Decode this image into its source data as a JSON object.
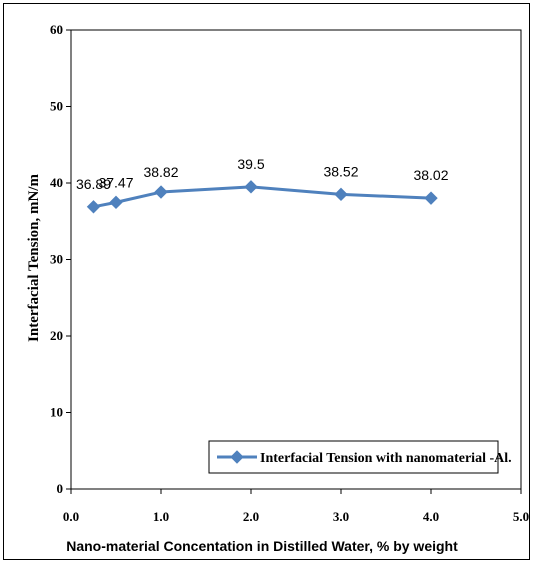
{
  "chart_data": {
    "type": "line",
    "title": "",
    "xlabel": "Nano-material Concentation in Distilled Water, % by weight",
    "ylabel": "Interfacial Tension, mN/m",
    "xlim": [
      0,
      5
    ],
    "ylim": [
      0,
      60
    ],
    "x_ticks": [
      "0.0",
      "1.0",
      "2.0",
      "3.0",
      "4.0",
      "5.0"
    ],
    "y_ticks": [
      "0",
      "10",
      "20",
      "30",
      "40",
      "50",
      "60"
    ],
    "grid": false,
    "legend_position": "bottom-right",
    "series": [
      {
        "name": "Interfacial Tension with nanomaterial -Al.",
        "color": "#4F81BD",
        "marker": "diamond",
        "x": [
          0.25,
          0.5,
          1.0,
          2.0,
          3.0,
          4.0
        ],
        "y": [
          36.89,
          37.47,
          38.82,
          39.5,
          38.52,
          38.02
        ],
        "labels": [
          "36.89",
          "37.47",
          "38.82",
          "39.5",
          "38.52",
          "38.02"
        ]
      }
    ]
  }
}
